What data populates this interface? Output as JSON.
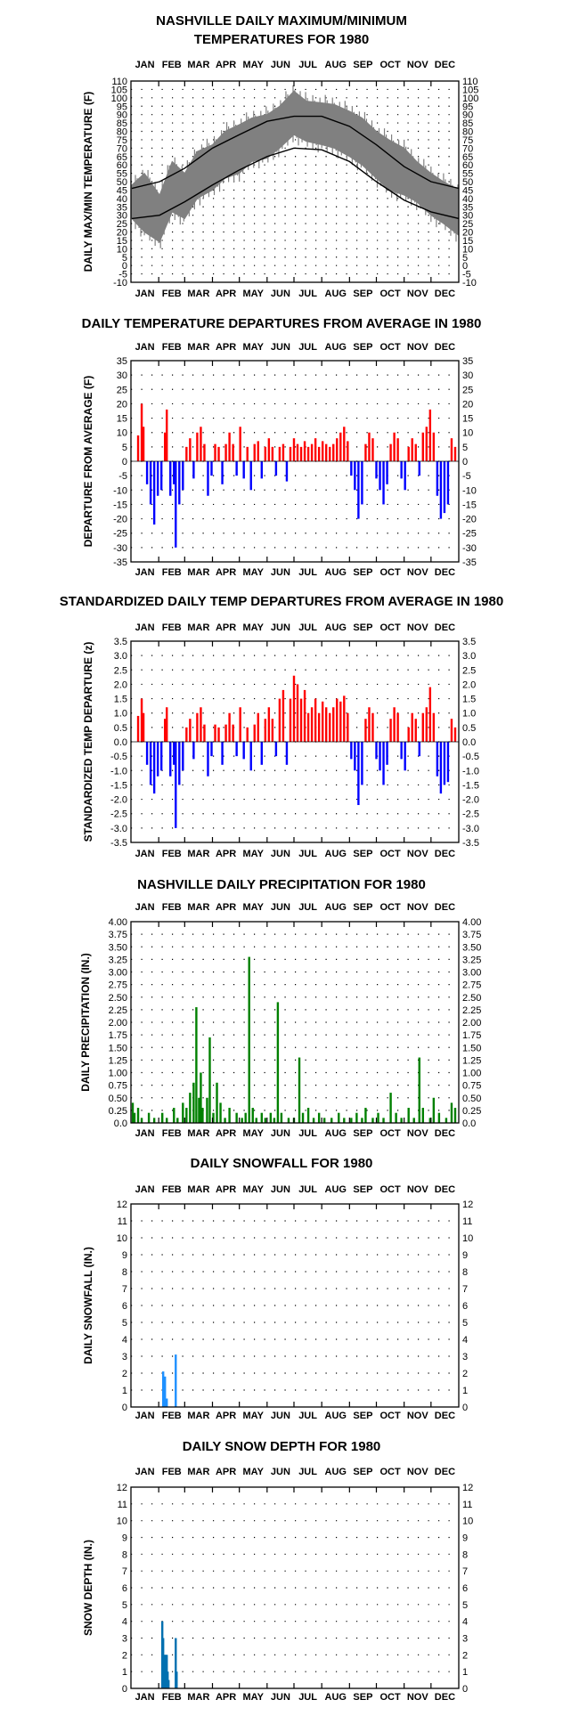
{
  "months": [
    "JAN",
    "FEB",
    "MAR",
    "APR",
    "MAY",
    "JUN",
    "JUL",
    "AUG",
    "SEP",
    "OCT",
    "NOV",
    "DEC"
  ],
  "chart_data": [
    {
      "type": "line",
      "title_lines": [
        "NASHVILLE DAILY MAXIMUM/MINIMUM",
        "TEMPERATURES FOR 1980"
      ],
      "ylabel": "DAILY MAX/MIN TEMPERATURE (F)",
      "ylim": [
        -10,
        110
      ],
      "yticks": [
        "110",
        "105",
        "100",
        "95",
        "90",
        "85",
        "80",
        "75",
        "70",
        "65",
        "60",
        "55",
        "50",
        "45",
        "40",
        "35",
        "30",
        "25",
        "20",
        "15",
        "10",
        "5",
        "0",
        "-5",
        "-10"
      ],
      "grid": true,
      "colors": {
        "range": "#808080",
        "normals": "#000000"
      },
      "series": [
        {
          "name": "daily range (max/min)",
          "x_day": [
            1,
            15,
            32,
            46,
            60,
            74,
            91,
            105,
            121,
            135,
            152,
            166,
            182,
            196,
            213,
            227,
            244,
            258,
            274,
            288,
            305,
            319,
            335,
            349,
            366
          ],
          "max": [
            48,
            55,
            42,
            62,
            55,
            68,
            72,
            80,
            84,
            88,
            90,
            95,
            104,
            98,
            97,
            96,
            92,
            88,
            80,
            75,
            70,
            62,
            55,
            50,
            45
          ],
          "min": [
            28,
            20,
            14,
            32,
            28,
            40,
            45,
            52,
            55,
            62,
            64,
            70,
            78,
            74,
            72,
            70,
            65,
            60,
            52,
            45,
            42,
            38,
            30,
            25,
            18
          ]
        },
        {
          "name": "normal max",
          "x_day": [
            1,
            32,
            60,
            91,
            121,
            152,
            182,
            213,
            244,
            274,
            305,
            335,
            366
          ],
          "values": [
            46,
            50,
            58,
            70,
            78,
            86,
            89,
            89,
            83,
            72,
            59,
            50,
            46
          ]
        },
        {
          "name": "normal min",
          "x_day": [
            1,
            32,
            60,
            91,
            121,
            152,
            182,
            213,
            244,
            274,
            305,
            335,
            366
          ],
          "values": [
            28,
            30,
            38,
            48,
            57,
            65,
            70,
            69,
            62,
            50,
            39,
            32,
            28
          ]
        }
      ]
    },
    {
      "type": "bar",
      "title_lines": [
        "DAILY TEMPERATURE DEPARTURES FROM AVERAGE IN 1980"
      ],
      "ylabel": "DEPARTURE FROM AVERAGE (F)",
      "ylim": [
        -35,
        35
      ],
      "yticks": [
        "35",
        "30",
        "25",
        "20",
        "15",
        "10",
        "5",
        "0",
        "-5",
        "-10",
        "-15",
        "-20",
        "-25",
        "-30",
        "-35"
      ],
      "grid": true,
      "colors": {
        "positive": "#ff0000",
        "negative": "#0000ff"
      },
      "bars": [
        [
          8,
          9
        ],
        [
          12,
          20
        ],
        [
          14,
          12
        ],
        [
          18,
          -8
        ],
        [
          22,
          -15
        ],
        [
          26,
          -22
        ],
        [
          30,
          -12
        ],
        [
          34,
          -10
        ],
        [
          38,
          10
        ],
        [
          40,
          18
        ],
        [
          44,
          -12
        ],
        [
          48,
          -8
        ],
        [
          50,
          -30
        ],
        [
          54,
          -15
        ],
        [
          58,
          -10
        ],
        [
          62,
          5
        ],
        [
          66,
          8
        ],
        [
          70,
          -6
        ],
        [
          74,
          10
        ],
        [
          78,
          12
        ],
        [
          82,
          6
        ],
        [
          86,
          -12
        ],
        [
          90,
          -5
        ],
        [
          94,
          6
        ],
        [
          98,
          5
        ],
        [
          102,
          -8
        ],
        [
          106,
          6
        ],
        [
          110,
          10
        ],
        [
          114,
          6
        ],
        [
          118,
          -5
        ],
        [
          122,
          12
        ],
        [
          126,
          -6
        ],
        [
          130,
          5
        ],
        [
          134,
          -10
        ],
        [
          138,
          6
        ],
        [
          142,
          7
        ],
        [
          146,
          -6
        ],
        [
          150,
          5
        ],
        [
          154,
          8
        ],
        [
          158,
          5
        ],
        [
          162,
          -5
        ],
        [
          166,
          5
        ],
        [
          170,
          6
        ],
        [
          174,
          -7
        ],
        [
          178,
          5
        ],
        [
          182,
          8
        ],
        [
          186,
          6
        ],
        [
          190,
          5
        ],
        [
          194,
          7
        ],
        [
          198,
          5
        ],
        [
          202,
          6
        ],
        [
          206,
          8
        ],
        [
          210,
          5
        ],
        [
          214,
          7
        ],
        [
          218,
          6
        ],
        [
          222,
          5
        ],
        [
          226,
          6
        ],
        [
          230,
          8
        ],
        [
          234,
          10
        ],
        [
          238,
          12
        ],
        [
          242,
          7
        ],
        [
          246,
          -5
        ],
        [
          250,
          -10
        ],
        [
          254,
          -20
        ],
        [
          258,
          -15
        ],
        [
          262,
          6
        ],
        [
          266,
          10
        ],
        [
          270,
          8
        ],
        [
          274,
          -6
        ],
        [
          278,
          -10
        ],
        [
          282,
          -15
        ],
        [
          286,
          -8
        ],
        [
          290,
          6
        ],
        [
          294,
          10
        ],
        [
          298,
          8
        ],
        [
          302,
          -6
        ],
        [
          306,
          -10
        ],
        [
          310,
          5
        ],
        [
          314,
          8
        ],
        [
          318,
          6
        ],
        [
          322,
          -5
        ],
        [
          326,
          10
        ],
        [
          330,
          12
        ],
        [
          334,
          18
        ],
        [
          338,
          10
        ],
        [
          342,
          -12
        ],
        [
          346,
          -20
        ],
        [
          350,
          -18
        ],
        [
          354,
          -15
        ],
        [
          358,
          8
        ],
        [
          362,
          5
        ]
      ]
    },
    {
      "type": "bar",
      "title_lines": [
        "STANDARDIZED DAILY TEMP DEPARTURES FROM AVERAGE IN 1980"
      ],
      "ylabel": "STANDARDIZED TEMP DEPARTURE (z)",
      "ylim": [
        -3.5,
        3.5
      ],
      "yticks": [
        "3.5",
        "3.0",
        "2.5",
        "2.0",
        "1.5",
        "1.0",
        "0.5",
        "0.0",
        "-0.5",
        "-1.0",
        "-1.5",
        "-2.0",
        "-2.5",
        "-3.0",
        "-3.5"
      ],
      "grid": true,
      "colors": {
        "positive": "#ff0000",
        "negative": "#0000ff"
      },
      "bars": [
        [
          8,
          0.9
        ],
        [
          12,
          1.5
        ],
        [
          14,
          1.0
        ],
        [
          18,
          -0.8
        ],
        [
          22,
          -1.5
        ],
        [
          26,
          -1.8
        ],
        [
          30,
          -1.2
        ],
        [
          34,
          -1.0
        ],
        [
          38,
          0.8
        ],
        [
          40,
          1.2
        ],
        [
          44,
          -1.2
        ],
        [
          48,
          -0.8
        ],
        [
          50,
          -3.0
        ],
        [
          54,
          -1.5
        ],
        [
          58,
          -1.0
        ],
        [
          62,
          0.5
        ],
        [
          66,
          0.8
        ],
        [
          70,
          -0.6
        ],
        [
          74,
          1.0
        ],
        [
          78,
          1.2
        ],
        [
          82,
          0.6
        ],
        [
          86,
          -1.2
        ],
        [
          90,
          -0.5
        ],
        [
          94,
          0.6
        ],
        [
          98,
          0.5
        ],
        [
          102,
          -0.8
        ],
        [
          106,
          0.6
        ],
        [
          110,
          1.0
        ],
        [
          114,
          0.6
        ],
        [
          118,
          -0.5
        ],
        [
          122,
          1.2
        ],
        [
          126,
          -0.6
        ],
        [
          130,
          0.5
        ],
        [
          134,
          -1.0
        ],
        [
          138,
          0.6
        ],
        [
          142,
          1.0
        ],
        [
          146,
          -0.8
        ],
        [
          150,
          0.8
        ],
        [
          154,
          1.2
        ],
        [
          158,
          0.8
        ],
        [
          162,
          -0.5
        ],
        [
          166,
          1.5
        ],
        [
          170,
          1.8
        ],
        [
          174,
          -0.8
        ],
        [
          178,
          1.5
        ],
        [
          182,
          2.3
        ],
        [
          186,
          2.0
        ],
        [
          190,
          1.5
        ],
        [
          194,
          1.8
        ],
        [
          198,
          1.0
        ],
        [
          202,
          1.2
        ],
        [
          206,
          1.5
        ],
        [
          210,
          1.0
        ],
        [
          214,
          1.4
        ],
        [
          218,
          1.2
        ],
        [
          222,
          1.0
        ],
        [
          226,
          1.2
        ],
        [
          230,
          1.5
        ],
        [
          234,
          1.4
        ],
        [
          238,
          1.6
        ],
        [
          242,
          1.0
        ],
        [
          246,
          -0.6
        ],
        [
          250,
          -1.0
        ],
        [
          254,
          -2.2
        ],
        [
          258,
          -1.5
        ],
        [
          262,
          0.8
        ],
        [
          266,
          1.2
        ],
        [
          270,
          1.0
        ],
        [
          274,
          -0.6
        ],
        [
          278,
          -1.0
        ],
        [
          282,
          -1.5
        ],
        [
          286,
          -0.8
        ],
        [
          290,
          0.8
        ],
        [
          294,
          1.2
        ],
        [
          298,
          1.0
        ],
        [
          302,
          -0.6
        ],
        [
          306,
          -1.0
        ],
        [
          310,
          0.5
        ],
        [
          314,
          1.0
        ],
        [
          318,
          0.8
        ],
        [
          322,
          -0.5
        ],
        [
          326,
          1.0
        ],
        [
          330,
          1.2
        ],
        [
          334,
          1.9
        ],
        [
          338,
          1.0
        ],
        [
          342,
          -1.2
        ],
        [
          346,
          -1.8
        ],
        [
          350,
          -1.5
        ],
        [
          354,
          -1.4
        ],
        [
          358,
          0.8
        ],
        [
          362,
          0.5
        ]
      ]
    },
    {
      "type": "bar",
      "title_lines": [
        "NASHVILLE DAILY PRECIPITATION FOR 1980"
      ],
      "ylabel": "DAILY PRECIPITATION (IN.)",
      "ylim": [
        0,
        4
      ],
      "yticks": [
        "4.00",
        "3.75",
        "3.50",
        "3.25",
        "3.00",
        "2.75",
        "2.50",
        "2.25",
        "2.00",
        "1.75",
        "1.50",
        "1.25",
        "1.00",
        "0.75",
        "0.50",
        "0.25",
        "0.0"
      ],
      "grid": true,
      "colors": {
        "bars": "#008000"
      },
      "bars": [
        [
          2,
          0.4
        ],
        [
          4,
          0.2
        ],
        [
          8,
          0.3
        ],
        [
          12,
          0.1
        ],
        [
          20,
          0.2
        ],
        [
          26,
          0.1
        ],
        [
          35,
          0.2
        ],
        [
          40,
          0.1
        ],
        [
          48,
          0.3
        ],
        [
          52,
          0.1
        ],
        [
          58,
          0.4
        ],
        [
          62,
          0.3
        ],
        [
          66,
          0.6
        ],
        [
          70,
          0.8
        ],
        [
          73,
          2.3
        ],
        [
          76,
          0.5
        ],
        [
          78,
          1.0
        ],
        [
          80,
          0.3
        ],
        [
          85,
          0.5
        ],
        [
          88,
          1.7
        ],
        [
          92,
          0.2
        ],
        [
          96,
          0.8
        ],
        [
          100,
          0.4
        ],
        [
          105,
          0.1
        ],
        [
          110,
          0.3
        ],
        [
          118,
          0.2
        ],
        [
          124,
          0.1
        ],
        [
          128,
          0.2
        ],
        [
          132,
          3.3
        ],
        [
          136,
          0.3
        ],
        [
          140,
          0.1
        ],
        [
          146,
          0.2
        ],
        [
          150,
          0.1
        ],
        [
          156,
          0.2
        ],
        [
          160,
          0.1
        ],
        [
          164,
          2.4
        ],
        [
          168,
          0.2
        ],
        [
          176,
          0.1
        ],
        [
          182,
          0.1
        ],
        [
          188,
          1.3
        ],
        [
          192,
          0.2
        ],
        [
          198,
          0.3
        ],
        [
          204,
          0.1
        ],
        [
          210,
          0.2
        ],
        [
          216,
          0.1
        ],
        [
          224,
          0.1
        ],
        [
          232,
          0.2
        ],
        [
          238,
          0.1
        ],
        [
          246,
          0.1
        ],
        [
          252,
          0.2
        ],
        [
          258,
          0.1
        ],
        [
          262,
          0.3
        ],
        [
          270,
          0.1
        ],
        [
          276,
          0.2
        ],
        [
          282,
          0.1
        ],
        [
          290,
          0.6
        ],
        [
          296,
          0.2
        ],
        [
          302,
          0.1
        ],
        [
          310,
          0.3
        ],
        [
          316,
          0.1
        ],
        [
          322,
          1.3
        ],
        [
          326,
          0.3
        ],
        [
          334,
          0.1
        ],
        [
          338,
          0.5
        ],
        [
          344,
          0.2
        ],
        [
          352,
          0.1
        ],
        [
          358,
          0.4
        ],
        [
          362,
          0.3
        ]
      ]
    },
    {
      "type": "bar",
      "title_lines": [
        "DAILY SNOWFALL FOR 1980"
      ],
      "ylabel": "DAILY SNOWFALL (IN.)",
      "ylim": [
        0,
        12
      ],
      "yticks": [
        "12",
        "11",
        "10",
        "9",
        "8",
        "7",
        "6",
        "5",
        "4",
        "3",
        "2",
        "1",
        "0"
      ],
      "grid": true,
      "colors": {
        "bars": "#1e90ff"
      },
      "bars": [
        [
          36,
          2.1
        ],
        [
          38,
          1.8
        ],
        [
          40,
          0.5
        ],
        [
          50,
          3.1
        ]
      ]
    },
    {
      "type": "bar",
      "title_lines": [
        "DAILY SNOW DEPTH FOR 1980"
      ],
      "ylabel": "SNOW DEPTH (IN.)",
      "ylim": [
        0,
        12
      ],
      "yticks": [
        "12",
        "11",
        "10",
        "9",
        "8",
        "7",
        "6",
        "5",
        "4",
        "3",
        "2",
        "1",
        "0"
      ],
      "grid": true,
      "colors": {
        "bars": "#0070b0"
      },
      "bars": [
        [
          35,
          4.0
        ],
        [
          36,
          3.0
        ],
        [
          37,
          2.0
        ],
        [
          38,
          2.0
        ],
        [
          39,
          2.0
        ],
        [
          40,
          2.0
        ],
        [
          41,
          1.0
        ],
        [
          42,
          0.5
        ],
        [
          50,
          3.0
        ],
        [
          51,
          1.0
        ]
      ]
    }
  ]
}
